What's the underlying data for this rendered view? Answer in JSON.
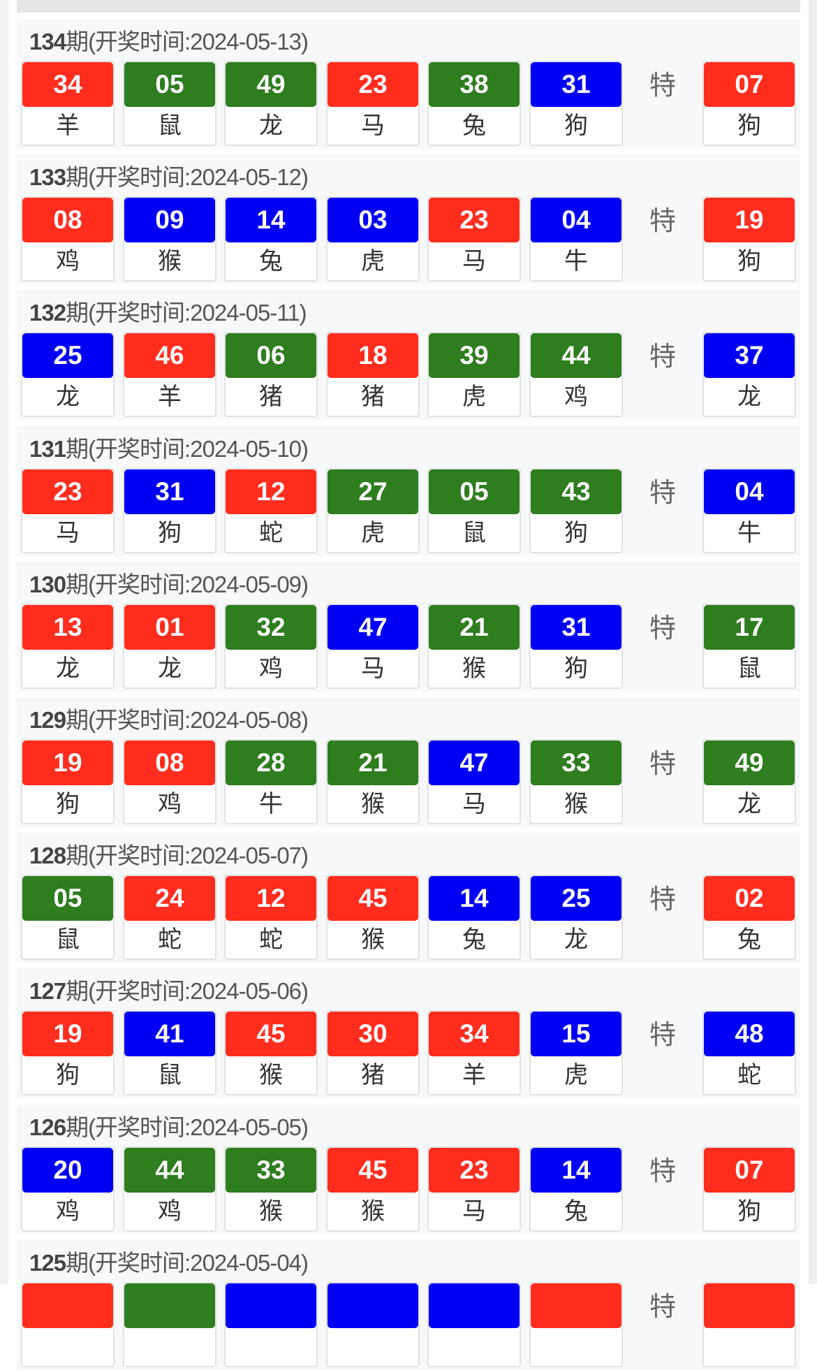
{
  "colors": {
    "red": "#ff2d1e",
    "green": "#2e7d1e",
    "blue": "#0000f2"
  },
  "special_label": "特",
  "draws": [
    {
      "period": "134",
      "label": "期(开奖时间:2024-05-13)",
      "balls": [
        [
          "34",
          "羊",
          "red"
        ],
        [
          "05",
          "鼠",
          "green"
        ],
        [
          "49",
          "龙",
          "green"
        ],
        [
          "23",
          "马",
          "red"
        ],
        [
          "38",
          "兔",
          "green"
        ],
        [
          "31",
          "狗",
          "blue"
        ]
      ],
      "special": [
        "07",
        "狗",
        "red"
      ]
    },
    {
      "period": "133",
      "label": "期(开奖时间:2024-05-12)",
      "balls": [
        [
          "08",
          "鸡",
          "red"
        ],
        [
          "09",
          "猴",
          "blue"
        ],
        [
          "14",
          "兔",
          "blue"
        ],
        [
          "03",
          "虎",
          "blue"
        ],
        [
          "23",
          "马",
          "red"
        ],
        [
          "04",
          "牛",
          "blue"
        ]
      ],
      "special": [
        "19",
        "狗",
        "red"
      ]
    },
    {
      "period": "132",
      "label": "期(开奖时间:2024-05-11)",
      "balls": [
        [
          "25",
          "龙",
          "blue"
        ],
        [
          "46",
          "羊",
          "red"
        ],
        [
          "06",
          "猪",
          "green"
        ],
        [
          "18",
          "猪",
          "red"
        ],
        [
          "39",
          "虎",
          "green"
        ],
        [
          "44",
          "鸡",
          "green"
        ]
      ],
      "special": [
        "37",
        "龙",
        "blue"
      ]
    },
    {
      "period": "131",
      "label": "期(开奖时间:2024-05-10)",
      "balls": [
        [
          "23",
          "马",
          "red"
        ],
        [
          "31",
          "狗",
          "blue"
        ],
        [
          "12",
          "蛇",
          "red"
        ],
        [
          "27",
          "虎",
          "green"
        ],
        [
          "05",
          "鼠",
          "green"
        ],
        [
          "43",
          "狗",
          "green"
        ]
      ],
      "special": [
        "04",
        "牛",
        "blue"
      ]
    },
    {
      "period": "130",
      "label": "期(开奖时间:2024-05-09)",
      "balls": [
        [
          "13",
          "龙",
          "red"
        ],
        [
          "01",
          "龙",
          "red"
        ],
        [
          "32",
          "鸡",
          "green"
        ],
        [
          "47",
          "马",
          "blue"
        ],
        [
          "21",
          "猴",
          "green"
        ],
        [
          "31",
          "狗",
          "blue"
        ]
      ],
      "special": [
        "17",
        "鼠",
        "green"
      ]
    },
    {
      "period": "129",
      "label": "期(开奖时间:2024-05-08)",
      "balls": [
        [
          "19",
          "狗",
          "red"
        ],
        [
          "08",
          "鸡",
          "red"
        ],
        [
          "28",
          "牛",
          "green"
        ],
        [
          "21",
          "猴",
          "green"
        ],
        [
          "47",
          "马",
          "blue"
        ],
        [
          "33",
          "猴",
          "green"
        ]
      ],
      "special": [
        "49",
        "龙",
        "green"
      ]
    },
    {
      "period": "128",
      "label": "期(开奖时间:2024-05-07)",
      "balls": [
        [
          "05",
          "鼠",
          "green"
        ],
        [
          "24",
          "蛇",
          "red"
        ],
        [
          "12",
          "蛇",
          "red"
        ],
        [
          "45",
          "猴",
          "red"
        ],
        [
          "14",
          "兔",
          "blue"
        ],
        [
          "25",
          "龙",
          "blue"
        ]
      ],
      "special": [
        "02",
        "兔",
        "red"
      ]
    },
    {
      "period": "127",
      "label": "期(开奖时间:2024-05-06)",
      "balls": [
        [
          "19",
          "狗",
          "red"
        ],
        [
          "41",
          "鼠",
          "blue"
        ],
        [
          "45",
          "猴",
          "red"
        ],
        [
          "30",
          "猪",
          "red"
        ],
        [
          "34",
          "羊",
          "red"
        ],
        [
          "15",
          "虎",
          "blue"
        ]
      ],
      "special": [
        "48",
        "蛇",
        "blue"
      ]
    },
    {
      "period": "126",
      "label": "期(开奖时间:2024-05-05)",
      "balls": [
        [
          "20",
          "鸡",
          "blue"
        ],
        [
          "44",
          "鸡",
          "green"
        ],
        [
          "33",
          "猴",
          "green"
        ],
        [
          "45",
          "猴",
          "red"
        ],
        [
          "23",
          "马",
          "red"
        ],
        [
          "14",
          "兔",
          "blue"
        ]
      ],
      "special": [
        "07",
        "狗",
        "red"
      ]
    },
    {
      "period": "125",
      "label": "期(开奖时间:2024-05-04)",
      "balls": [
        [
          "",
          "",
          "red"
        ],
        [
          "",
          "",
          "green"
        ],
        [
          "",
          "",
          "blue"
        ],
        [
          "",
          "",
          "blue"
        ],
        [
          "",
          "",
          "blue"
        ],
        [
          "",
          "",
          "red"
        ]
      ],
      "special": [
        "",
        "",
        "red"
      ]
    }
  ]
}
